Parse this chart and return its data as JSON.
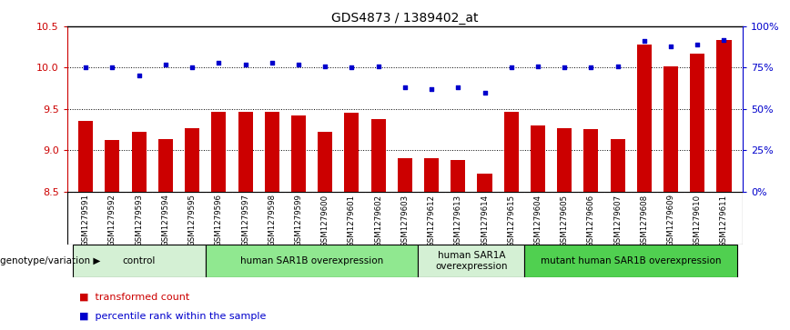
{
  "title": "GDS4873 / 1389402_at",
  "samples": [
    "GSM1279591",
    "GSM1279592",
    "GSM1279593",
    "GSM1279594",
    "GSM1279595",
    "GSM1279596",
    "GSM1279597",
    "GSM1279598",
    "GSM1279599",
    "GSM1279600",
    "GSM1279601",
    "GSM1279602",
    "GSM1279603",
    "GSM1279612",
    "GSM1279613",
    "GSM1279614",
    "GSM1279615",
    "GSM1279604",
    "GSM1279605",
    "GSM1279606",
    "GSM1279607",
    "GSM1279608",
    "GSM1279609",
    "GSM1279610",
    "GSM1279611"
  ],
  "transformed_count": [
    9.35,
    9.12,
    9.22,
    9.13,
    9.27,
    9.47,
    9.47,
    9.47,
    9.42,
    9.22,
    9.45,
    9.38,
    8.9,
    8.9,
    8.88,
    8.72,
    9.47,
    9.3,
    9.27,
    9.25,
    9.13,
    10.28,
    10.02,
    10.17,
    10.33
  ],
  "percentile_rank": [
    75,
    75,
    70,
    77,
    75,
    78,
    77,
    78,
    77,
    76,
    75,
    76,
    63,
    62,
    63,
    60,
    75,
    76,
    75,
    75,
    76,
    91,
    88,
    89,
    92
  ],
  "groups": [
    {
      "label": "control",
      "start": 0,
      "end": 5,
      "color": "#d4f0d4"
    },
    {
      "label": "human SAR1B overexpression",
      "start": 5,
      "end": 13,
      "color": "#90e890"
    },
    {
      "label": "human SAR1A\noverexpression",
      "start": 13,
      "end": 17,
      "color": "#d4f0d4"
    },
    {
      "label": "mutant human SAR1B overexpression",
      "start": 17,
      "end": 25,
      "color": "#50d050"
    }
  ],
  "ylim_left": [
    8.5,
    10.5
  ],
  "ylim_right": [
    0,
    100
  ],
  "yticks_left": [
    8.5,
    9.0,
    9.5,
    10.0,
    10.5
  ],
  "yticks_right": [
    0,
    25,
    50,
    75,
    100
  ],
  "bar_color": "#cc0000",
  "dot_color": "#0000cc",
  "bar_bottom": 8.5,
  "tick_bg_color": "#c8c8c8",
  "legend_red_label": "transformed count",
  "legend_blue_label": "percentile rank within the sample",
  "genotype_label": "genotype/variation"
}
